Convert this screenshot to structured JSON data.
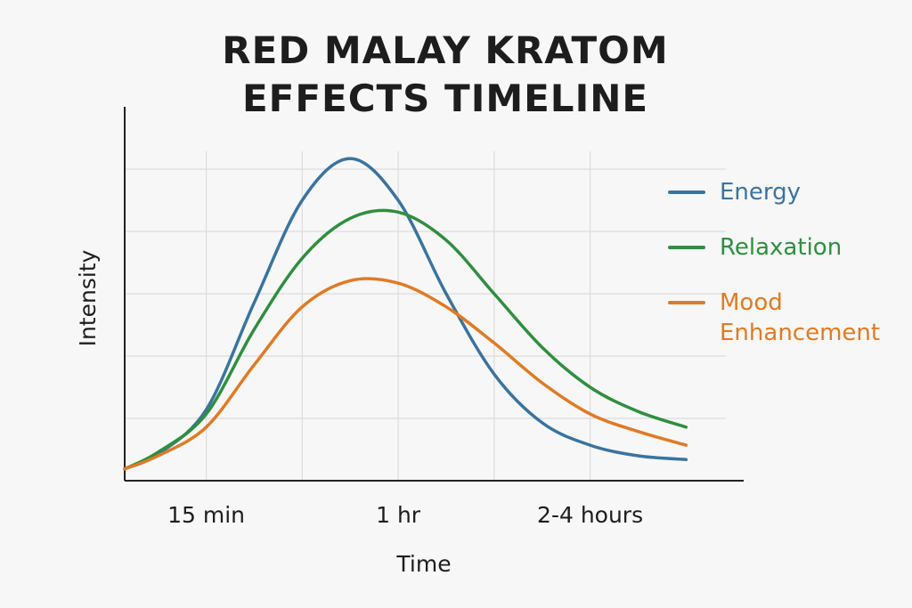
{
  "chart_data": {
    "type": "line",
    "title": "RED MALAY KRATOM EFFECTS TIMELINE",
    "x_label": "Time",
    "y_label": "Intensity",
    "x": [
      0.15,
      0.5,
      1,
      1.5,
      2,
      2.5,
      3,
      3.5,
      4,
      4.5,
      5,
      5.5,
      6
    ],
    "series": [
      {
        "name": "Energy",
        "color": "#3a74a0",
        "values": [
          0.19,
          0.43,
          1.14,
          2.86,
          4.5,
          5.17,
          4.5,
          3.0,
          1.71,
          0.93,
          0.57,
          0.4,
          0.34
        ]
      },
      {
        "name": "Relaxation",
        "color": "#2f8f3e",
        "values": [
          0.19,
          0.46,
          1.07,
          2.43,
          3.57,
          4.21,
          4.31,
          3.86,
          3.0,
          2.14,
          1.5,
          1.11,
          0.86
        ]
      },
      {
        "name": "Mood Enhancement",
        "color": "#e07b25",
        "values": [
          0.19,
          0.4,
          0.86,
          1.86,
          2.79,
          3.21,
          3.17,
          2.79,
          2.21,
          1.57,
          1.07,
          0.79,
          0.57
        ]
      }
    ],
    "xlim": [
      0.15,
      6.6
    ],
    "ylim": [
      0,
      6
    ],
    "xticks": [
      {
        "value": 1,
        "label": "15 min"
      },
      {
        "value": 2,
        "label": null
      },
      {
        "value": 3,
        "label": "1 hr"
      },
      {
        "value": 4,
        "label": null
      },
      {
        "value": 5,
        "label": "2-4 hours"
      }
    ],
    "yticks": [
      {
        "value": 1,
        "label": null
      },
      {
        "value": 2,
        "label": null
      },
      {
        "value": 3,
        "label": null
      },
      {
        "value": 4,
        "label": null
      },
      {
        "value": 5,
        "label": null
      }
    ],
    "grid": true
  }
}
